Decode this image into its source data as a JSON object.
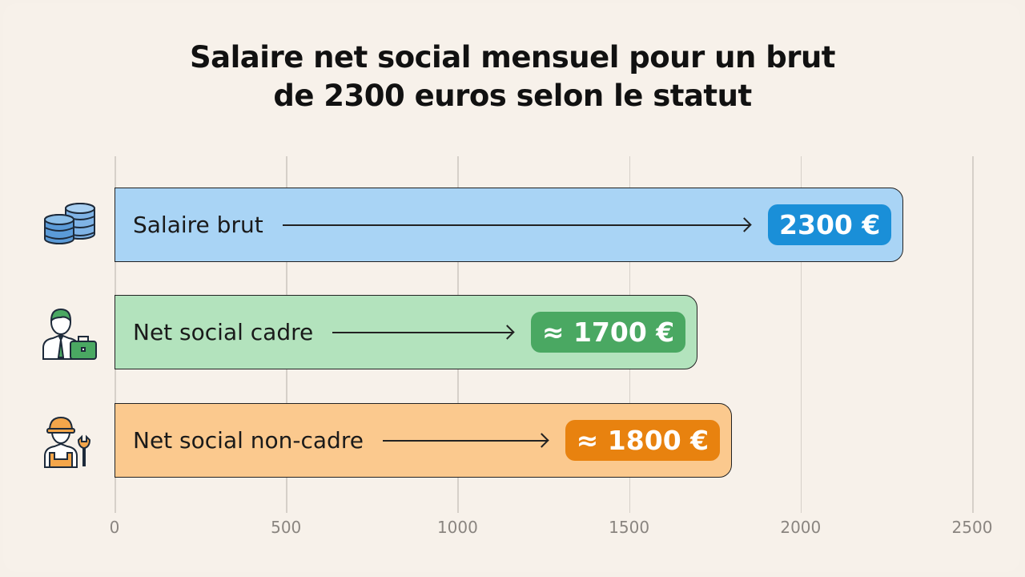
{
  "chart_data": {
    "type": "bar",
    "orientation": "horizontal",
    "title": "Salaire net social mensuel pour un brut de 2300 euros selon le statut",
    "title_lines": [
      "Salaire net social mensuel pour un brut",
      "de 2300 euros selon le statut"
    ],
    "categories": [
      "Salaire brut",
      "Net social cadre",
      "Net social non-cadre"
    ],
    "values": [
      2300,
      1700,
      1800
    ],
    "value_labels": [
      "2300 €",
      "≈ 1700 €",
      "≈ 1800 €"
    ],
    "icons": [
      "coins-stack-icon",
      "office-worker-briefcase-icon",
      "worker-hardhat-wrench-icon"
    ],
    "bar_colors": [
      "#a9d4f5",
      "#b3e3bd",
      "#fbc98e"
    ],
    "badge_colors": [
      "#1a8fd8",
      "#4aa862",
      "#e8820f"
    ],
    "xlim": [
      0,
      2500
    ],
    "x_ticks": [
      "0",
      "500",
      "1000",
      "1500",
      "2000",
      "2500"
    ],
    "grid": true,
    "xlabel": "",
    "ylabel": ""
  }
}
